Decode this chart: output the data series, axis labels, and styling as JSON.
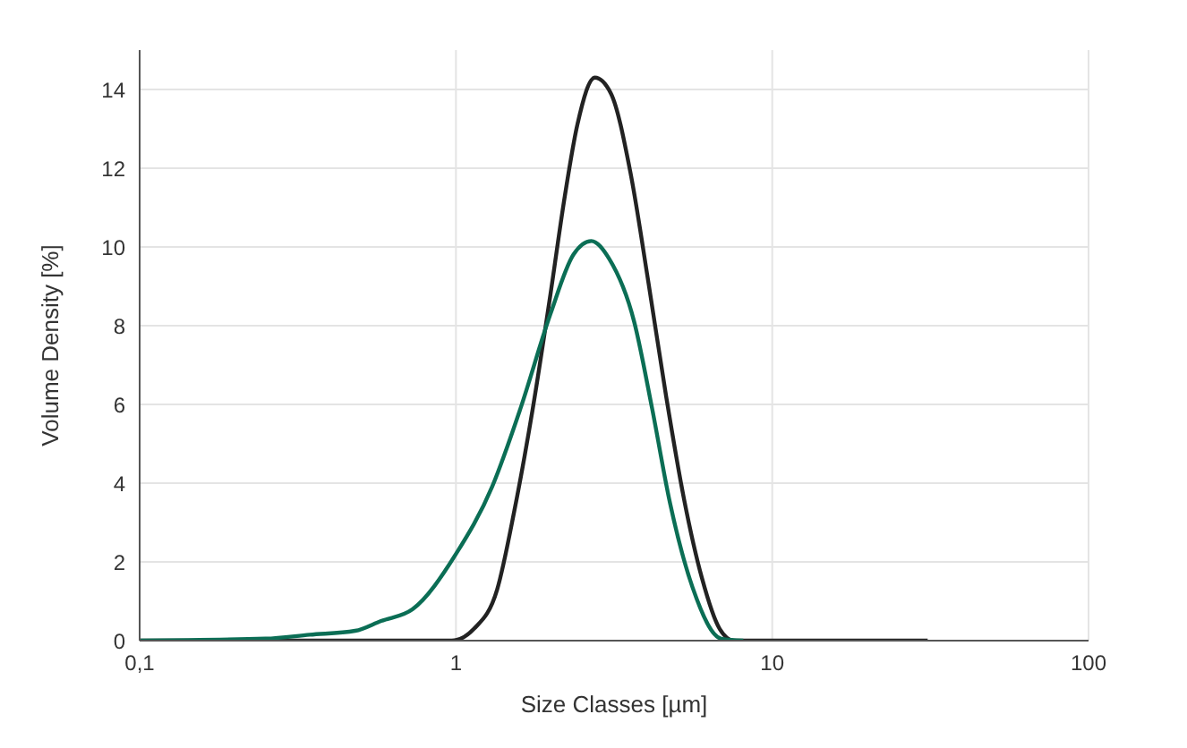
{
  "chart_data": {
    "type": "line",
    "xlabel": "Size Classes [µm]",
    "ylabel": "Volume Density [%]",
    "log": "x",
    "xlim": [
      0.1,
      100
    ],
    "xticks": [
      {
        "value": 0.1,
        "label": "0,1"
      },
      1,
      10,
      100
    ],
    "ylim": [
      0,
      15
    ],
    "yticks": [
      0,
      2,
      4,
      6,
      8,
      10,
      12,
      14
    ],
    "grid": true,
    "marker": "none",
    "line_style": "solid",
    "series": [
      {
        "color": "#222222",
        "x": [
          0.1,
          0.97,
          1.14,
          1.35,
          1.53,
          1.75,
          1.99,
          2.21,
          2.42,
          2.75,
          3.09,
          3.56,
          4.06,
          4.62,
          5.26,
          5.99,
          6.82,
          7.57,
          31
        ],
        "values": [
          0,
          0,
          0.3,
          1.3,
          3.3,
          5.9,
          8.8,
          11.3,
          13.1,
          14.3,
          13.9,
          11.9,
          9.1,
          6.2,
          3.6,
          1.6,
          0.3,
          0,
          0
        ]
      },
      {
        "color": "#0b6e55",
        "x": [
          0.1,
          0.25,
          0.345,
          0.48,
          0.58,
          0.73,
          1,
          1.3,
          1.6,
          1.99,
          2.35,
          2.68,
          3.05,
          3.66,
          4.17,
          4.75,
          5.6,
          6.9,
          8.1
        ],
        "values": [
          0,
          0.05,
          0.15,
          0.25,
          0.5,
          0.8,
          2.2,
          3.9,
          5.9,
          8.3,
          9.8,
          10.15,
          9.7,
          8.1,
          5.9,
          3.5,
          1.35,
          0.05,
          0
        ]
      }
    ]
  }
}
